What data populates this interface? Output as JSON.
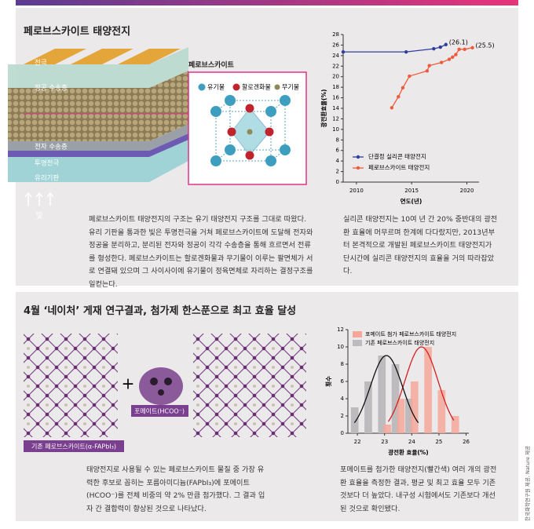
{
  "sections": [
    {
      "title": "페로브스카이트 태양전지",
      "illustration": {
        "layers": [
          "전극",
          "정공 수송층",
          "전자 수송층",
          "투명전극",
          "유리기판"
        ],
        "light": "빛",
        "crystal_title": "페로브스카이트",
        "crystal_legend": [
          "유기물",
          "할로겐화물",
          "무기물"
        ]
      },
      "paragraphs": [
        "페로브스카이트 태양전지의 구조는 유기 태양전지 구조를 그대로 따왔다. 유리 기판을 통과한 빛은 투명전극을 거쳐 페로브스카이트에 도달해 전자와 정공을 분리하고, 분리된 전자와 정공이 각각 수송층을 통해 흐르면서 전류를 형성한다. 페로브스카이트는 할로겐화물과 무기물이 이루는 팔면체가 서로 연결돼 있으며 그 사이사이에 유기물이 정육면체로 자리하는 결정구조를 일컫는다.",
        "실리콘 태양전지는 10여 년 간 20% 중반대의 광전환 효율에 머무르며 한계에 다다랐지만, 2013년부터 본격적으로 개발된 페로브스카이트 태양전지가 단시간에 실리콘 태양전지의 효율을 거의 따라잡았다."
      ]
    },
    {
      "title": "4월 ‘네이처’ 게재 연구결과, 첨가제 한스푼으로 최고 효율 달성",
      "illustration": {
        "plus": "+",
        "additive": "포메이트(HCOO⁻)",
        "base": "기존 페로브스카이트(α-FAPbI₃)"
      },
      "paragraphs": [
        "태양전지로 사용될 수 있는 페로브스카이트 물질 중 가장 유력한 후보로 꼽히는 포름아미디늄(FAPbI₃)에 포메이트(HCOO⁻)를 전체 비중의 약 2% 만큼 첨가했다. 그 결과 입자 간 결합력이 향상된 것으로 나타났다.",
        "포메이트를 첨가한 태양전지(빨간색) 여러 개의 광전환 효율을 측정한 결과, 평균 및 최고 효율 모두 기존 것보다 더 높았다. 내구성 시험에서도 기존보다 개선된 것으로 확인됐다."
      ]
    }
  ],
  "credit": "한국화학연구원 제공, Nature 제공",
  "chart_data": [
    {
      "type": "line",
      "xlabel": "연도(년)",
      "ylabel": "광전환효율(%)",
      "xlim": [
        2008.8,
        2021.1
      ],
      "xticks": [
        2010,
        2015,
        2020
      ],
      "ylim": [
        0,
        28
      ],
      "yticks": [
        0,
        2,
        4,
        6,
        8,
        10,
        12,
        14,
        16,
        18,
        20,
        22,
        24,
        26,
        28
      ],
      "series": [
        {
          "name": "단결정 실리콘 태양전지",
          "color": "#2f3e9e",
          "x": [
            2008.8,
            2014.5,
            2017,
            2017.6,
            2018.1
          ],
          "values": [
            24.7,
            24.7,
            25.3,
            25.6,
            26.1
          ]
        },
        {
          "name": "페로브스카이트 태양전지",
          "color": "#f05a3c",
          "x": [
            2013.2,
            2013.8,
            2014.2,
            2014.8,
            2016.4,
            2016.6,
            2017.7,
            2018.4,
            2018.7,
            2019,
            2019.3,
            2019.8,
            2020.5
          ],
          "values": [
            14.1,
            16.2,
            17.9,
            20.1,
            21.1,
            22.1,
            22.7,
            23.3,
            23.7,
            24.2,
            25.2,
            25.2,
            25.5
          ]
        }
      ],
      "annotations": [
        {
          "text": "(26.1)",
          "x": 2018.1,
          "y": 26.1
        },
        {
          "text": "(25.5)",
          "x": 2020.5,
          "y": 25.5
        }
      ]
    },
    {
      "type": "histogram",
      "xlabel": "광전환 효율(%)",
      "ylabel": "횟수",
      "xlim": [
        21.65,
        26.1
      ],
      "xticks": [
        22,
        23,
        24,
        25,
        26
      ],
      "ylim": [
        0,
        12
      ],
      "yticks": [
        0,
        2,
        4,
        6,
        8,
        10,
        12
      ],
      "x": [
        22,
        22.5,
        23,
        23.5,
        24,
        24.5,
        25,
        25.5
      ],
      "series": [
        {
          "name": "포메이트 첨가 페로브스카이트 태양전지",
          "color": "#f6a79a",
          "fit_color": "#d42020",
          "values": [
            0,
            0,
            1,
            4,
            6,
            10,
            5,
            2
          ]
        },
        {
          "name": "기존 페로브스카이트 태양전지",
          "color": "#bdbbbd",
          "fit_color": "#111111",
          "values": [
            3,
            6,
            9,
            8,
            4,
            0,
            0,
            0
          ]
        }
      ]
    }
  ]
}
